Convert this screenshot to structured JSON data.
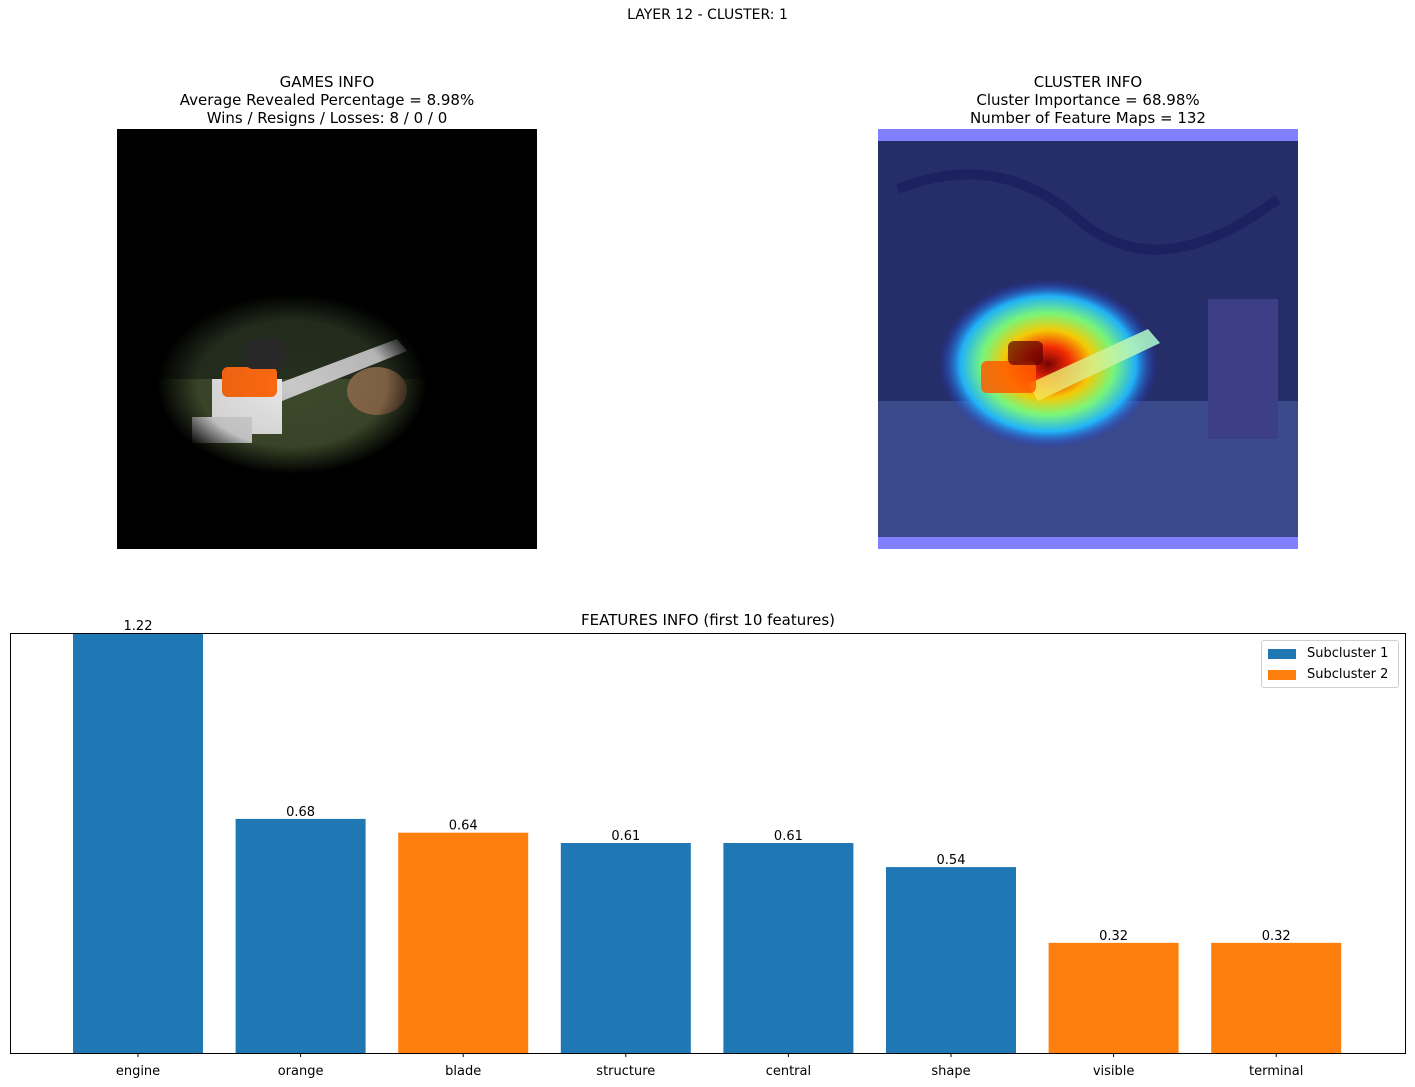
{
  "suptitle": "LAYER 12 - CLUSTER: 1",
  "games_info": {
    "title": "GAMES INFO",
    "line1": "Average Revealed Percentage = 8.98%",
    "line2": "Wins / Resigns / Losses: 8 / 0 / 0"
  },
  "cluster_info": {
    "title": "CLUSTER INFO",
    "line1": "Cluster Importance = 68.98%",
    "line2": "Number of Feature Maps = 132"
  },
  "colors": {
    "subcluster1": "#1f77b4",
    "subcluster2": "#ff7f0e"
  },
  "chart_data": {
    "type": "bar",
    "title": "FEATURES INFO (first 10 features)",
    "categories": [
      "engine",
      "orange",
      "blade",
      "structure",
      "central",
      "shape",
      "visible",
      "terminal"
    ],
    "values": [
      1.22,
      0.68,
      0.64,
      0.61,
      0.61,
      0.54,
      0.32,
      0.32
    ],
    "value_labels": [
      "1.22",
      "0.68",
      "0.64",
      "0.61",
      "0.61",
      "0.54",
      "0.32",
      "0.32"
    ],
    "subcluster": [
      1,
      1,
      2,
      1,
      1,
      1,
      2,
      2
    ],
    "legend": [
      "Subcluster 1",
      "Subcluster 2"
    ],
    "legend_position": "upper right",
    "ylim": [
      0,
      1.22
    ],
    "grid": false
  }
}
